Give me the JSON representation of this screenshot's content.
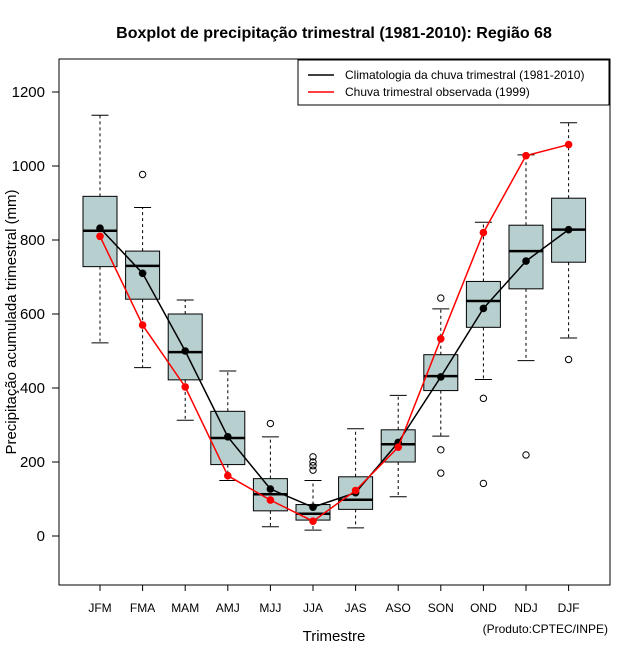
{
  "chart_data": {
    "type": "boxplot",
    "title": "Boxplot de precipitação trimestral (1981-2010): Região 68",
    "xlabel": "Trimestre",
    "ylabel": "Precipitação acumulada trimestral (mm)",
    "credit": "(Produto:CPTEC/INPE)",
    "ylim": [
      -130,
      1290
    ],
    "yticks": [
      0,
      200,
      400,
      600,
      800,
      1000,
      1200
    ],
    "categories": [
      "JFM",
      "FMA",
      "MAM",
      "AMJ",
      "MJJ",
      "JJA",
      "JAS",
      "ASO",
      "SON",
      "OND",
      "NDJ",
      "DJF"
    ],
    "boxes": [
      {
        "whisker_low": 522,
        "q1": 728,
        "median": 825,
        "q3": 918,
        "whisker_high": 1137,
        "outliers": []
      },
      {
        "whisker_low": 455,
        "q1": 640,
        "median": 730,
        "q3": 770,
        "whisker_high": 888,
        "outliers": [
          977
        ]
      },
      {
        "whisker_low": 313,
        "q1": 422,
        "median": 497,
        "q3": 600,
        "whisker_high": 638,
        "outliers": []
      },
      {
        "whisker_low": 150,
        "q1": 193,
        "median": 265,
        "q3": 337,
        "whisker_high": 446,
        "outliers": []
      },
      {
        "whisker_low": 25,
        "q1": 68,
        "median": 113,
        "q3": 155,
        "whisker_high": 268,
        "outliers": [
          304
        ]
      },
      {
        "whisker_low": 16,
        "q1": 43,
        "median": 60,
        "q3": 85,
        "whisker_high": 150,
        "outliers": [
          178,
          190,
          200,
          214
        ]
      },
      {
        "whisker_low": 22,
        "q1": 72,
        "median": 98,
        "q3": 160,
        "whisker_high": 290,
        "outliers": []
      },
      {
        "whisker_low": 106,
        "q1": 200,
        "median": 248,
        "q3": 287,
        "whisker_high": 380,
        "outliers": []
      },
      {
        "whisker_low": 270,
        "q1": 393,
        "median": 432,
        "q3": 490,
        "whisker_high": 614,
        "outliers": [
          643,
          233,
          170
        ]
      },
      {
        "whisker_low": 423,
        "q1": 564,
        "median": 635,
        "q3": 688,
        "whisker_high": 848,
        "outliers": [
          372,
          142
        ]
      },
      {
        "whisker_low": 474,
        "q1": 668,
        "median": 770,
        "q3": 840,
        "whisker_high": 1030,
        "outliers": [
          219
        ]
      },
      {
        "whisker_low": 535,
        "q1": 740,
        "median": 828,
        "q3": 913,
        "whisker_high": 1117,
        "outliers": [
          477
        ]
      }
    ],
    "series": [
      {
        "name": "Climatologia da chuva trimestral (1981-2010)",
        "color": "#000000",
        "values": [
          832,
          710,
          500,
          268,
          127,
          78,
          117,
          253,
          430,
          615,
          743,
          828
        ]
      },
      {
        "name": "Chuva trimestral observada (1999)",
        "color": "#ff0000",
        "values": [
          810,
          570,
          403,
          163,
          97,
          40,
          123,
          240,
          533,
          820,
          1028,
          1058
        ]
      }
    ],
    "legend_position": "top-right",
    "box_fill": "#b8cfcf"
  }
}
